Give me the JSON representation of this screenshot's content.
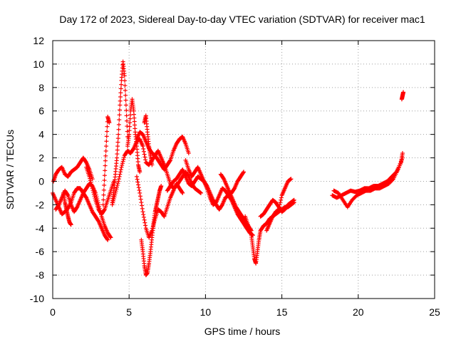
{
  "chart_data": {
    "type": "scatter",
    "title": "Day 172 of 2023, Sidereal Day-to-day VTEC variation (SDTVAR) for receiver mac1",
    "xlabel": "GPS time / hours",
    "ylabel": "SDTVAR / TECUs",
    "xlim": [
      0,
      25
    ],
    "ylim": [
      -10,
      12
    ],
    "xticks": [
      0,
      5,
      10,
      15,
      20,
      25
    ],
    "yticks": [
      -10,
      -8,
      -6,
      -4,
      -2,
      0,
      2,
      4,
      6,
      8,
      10,
      12
    ],
    "grid": true,
    "marker": "+",
    "series": [
      {
        "name": "SDTVAR",
        "color": "#ff0000",
        "segments": [
          {
            "x": [
              0.0,
              0.2,
              0.4,
              0.6,
              0.8,
              1.0,
              1.2,
              1.4,
              1.6,
              1.8,
              2.0,
              2.2,
              2.4,
              2.6,
              2.8,
              3.0,
              3.2,
              3.4,
              3.6
            ],
            "y": [
              -1.0,
              -1.6,
              -2.2,
              -2.8,
              -2.6,
              -2.3,
              -1.8,
              -1.0,
              -0.6,
              -0.6,
              -1.0,
              -1.4,
              -2.0,
              -2.6,
              -3.0,
              -3.4,
              -4.0,
              -4.6,
              -5.0
            ]
          },
          {
            "x": [
              0.05,
              0.2,
              0.4,
              0.6,
              0.8,
              1.0,
              1.2,
              1.4,
              1.6,
              1.8,
              2.0,
              2.2,
              2.4,
              2.6
            ],
            "y": [
              0.0,
              0.6,
              1.0,
              1.2,
              0.6,
              0.4,
              0.8,
              1.0,
              1.2,
              1.6,
              2.0,
              1.6,
              1.0,
              0.2
            ]
          },
          {
            "x": [
              0.2,
              0.4,
              0.6,
              0.8,
              1.0,
              1.2,
              1.4,
              1.6,
              1.8,
              2.0,
              2.2,
              2.4,
              2.6,
              2.8,
              3.0,
              3.2,
              3.4,
              3.6,
              3.8
            ],
            "y": [
              -2.4,
              -2.0,
              -1.4,
              -0.8,
              -1.2,
              -2.0,
              -2.6,
              -2.2,
              -1.6,
              -1.0,
              -0.6,
              -0.2,
              -0.4,
              -1.0,
              -2.0,
              -3.0,
              -3.8,
              -4.4,
              -4.8
            ]
          },
          {
            "x": [
              0.7,
              0.8,
              0.9,
              1.0,
              1.1,
              1.2
            ],
            "y": [
              -1.0,
              -1.8,
              -2.4,
              -3.0,
              -3.5,
              -3.7
            ]
          },
          {
            "x": [
              2.2,
              2.4,
              2.6,
              2.8,
              3.0,
              3.2,
              3.4,
              3.6,
              3.8,
              4.0
            ],
            "y": [
              1.2,
              0.4,
              -0.6,
              -1.6,
              -2.4,
              -2.8,
              -2.4,
              -1.6,
              -0.8,
              0.0
            ]
          },
          {
            "x": [
              3.3,
              3.4,
              3.5,
              3.6,
              3.7
            ],
            "y": [
              -2.0,
              0.5,
              3.0,
              5.5,
              5.0
            ]
          },
          {
            "x": [
              3.9,
              4.0,
              4.1,
              4.2,
              4.3,
              4.4,
              4.5,
              4.6,
              4.7,
              4.8,
              4.9
            ],
            "y": [
              -1.8,
              -0.8,
              0.6,
              2.0,
              4.0,
              6.5,
              8.6,
              10.2,
              9.0,
              6.5,
              3.8
            ]
          },
          {
            "x": [
              4.9,
              5.0,
              5.1,
              5.2,
              5.3,
              5.4,
              5.5,
              5.6,
              5.7
            ],
            "y": [
              3.0,
              4.0,
              6.0,
              7.0,
              6.0,
              4.2,
              3.0,
              1.4,
              0.8
            ]
          },
          {
            "x": [
              3.9,
              4.1,
              4.3,
              4.5,
              4.7,
              4.9,
              5.1,
              5.3,
              5.5,
              5.7,
              5.9,
              6.1,
              6.3,
              6.5,
              6.7,
              6.9,
              7.1,
              7.3,
              7.5,
              7.7,
              7.9,
              8.1,
              8.3,
              8.5,
              8.7,
              8.9,
              9.1,
              9.3,
              9.5,
              9.7
            ],
            "y": [
              -2.0,
              -1.0,
              0.0,
              1.2,
              2.2,
              2.6,
              2.4,
              2.8,
              3.4,
              3.6,
              3.0,
              1.6,
              1.4,
              1.8,
              2.2,
              2.6,
              2.0,
              1.4,
              0.6,
              -0.2,
              -0.6,
              -0.4,
              0.0,
              0.4,
              0.8,
              0.4,
              -0.2,
              -0.6,
              -0.8,
              -1.0
            ]
          },
          {
            "x": [
              5.5,
              5.7,
              5.9,
              6.1,
              6.3,
              6.5,
              6.7,
              6.9,
              7.1,
              7.3,
              7.5,
              7.7,
              7.9,
              8.1,
              8.3,
              8.5,
              8.7,
              8.9
            ],
            "y": [
              3.6,
              4.2,
              4.0,
              3.4,
              2.8,
              2.4,
              2.2,
              1.8,
              1.4,
              1.0,
              1.4,
              1.8,
              2.6,
              3.2,
              3.6,
              3.8,
              3.2,
              2.4
            ]
          },
          {
            "x": [
              6.0,
              6.1,
              6.2,
              6.3,
              6.4,
              6.5
            ],
            "y": [
              5.0,
              5.6,
              4.2,
              3.0,
              2.2,
              1.4
            ]
          },
          {
            "x": [
              5.8,
              5.9,
              6.0,
              6.1,
              6.2,
              6.3,
              6.4,
              6.5,
              6.6,
              6.7,
              6.8,
              6.9,
              7.0,
              7.1
            ],
            "y": [
              -5.0,
              -6.0,
              -7.2,
              -8.0,
              -7.8,
              -7.0,
              -6.0,
              -4.8,
              -3.6,
              -2.6,
              -2.0,
              -1.4,
              -0.8,
              -0.4
            ]
          },
          {
            "x": [
              5.5,
              5.7,
              5.9,
              6.1,
              6.3,
              6.5,
              6.7,
              6.9,
              7.1,
              7.3,
              7.5,
              7.7,
              7.9,
              8.1,
              8.3,
              8.5
            ],
            "y": [
              0.4,
              -1.0,
              -2.6,
              -4.0,
              -4.8,
              -4.2,
              -3.2,
              -2.4,
              -2.6,
              -3.0,
              -2.2,
              -1.4,
              -0.8,
              -0.2,
              -0.6,
              -1.0
            ]
          },
          {
            "x": [
              7.5,
              7.7,
              7.9,
              8.1,
              8.3,
              8.5,
              8.7,
              8.9,
              9.1,
              9.3,
              9.5,
              9.7,
              9.9,
              10.1,
              10.3,
              10.5,
              10.7,
              10.9,
              11.1,
              11.3,
              11.5,
              11.7,
              11.9,
              12.1,
              12.3,
              12.5,
              12.7,
              12.9,
              13.1
            ],
            "y": [
              -0.8,
              -0.4,
              0.0,
              0.2,
              0.6,
              1.0,
              0.4,
              -0.2,
              -0.4,
              0.0,
              0.4,
              0.2,
              0.0,
              -0.4,
              -1.0,
              -1.6,
              -2.0,
              -2.4,
              -2.0,
              -1.4,
              -1.2,
              -1.6,
              -2.2,
              -2.8,
              -3.2,
              -3.6,
              -4.0,
              -4.4,
              -4.6
            ]
          },
          {
            "x": [
              8.7,
              8.9,
              9.1,
              9.3,
              9.5,
              9.7,
              9.9,
              10.1,
              10.3,
              10.5,
              10.7,
              10.9,
              11.1,
              11.3,
              11.5,
              11.7,
              11.9,
              12.1,
              12.3,
              12.5
            ],
            "y": [
              1.8,
              1.0,
              0.4,
              0.8,
              1.2,
              0.6,
              0.0,
              -0.6,
              -1.4,
              -2.0,
              -1.8,
              -1.2,
              -0.6,
              -0.8,
              -1.2,
              -1.0,
              -0.6,
              0.0,
              0.4,
              0.8
            ]
          },
          {
            "x": [
              11.0,
              11.2,
              11.4,
              11.6,
              11.8,
              12.0,
              12.2,
              12.4,
              12.6,
              12.8,
              13.0
            ],
            "y": [
              0.6,
              0.2,
              -0.4,
              -1.0,
              -1.6,
              -2.2,
              -2.6,
              -3.0,
              -3.4,
              -3.8,
              -4.2
            ]
          },
          {
            "x": [
              12.6,
              12.8,
              13.0,
              13.1,
              13.2,
              13.3,
              13.4,
              13.5,
              13.6,
              13.8,
              14.0,
              14.2,
              14.4,
              14.6,
              14.8,
              15.0,
              15.2,
              15.4,
              15.6,
              15.8
            ],
            "y": [
              -3.0,
              -3.8,
              -4.6,
              -5.6,
              -6.6,
              -7.0,
              -6.0,
              -5.0,
              -4.2,
              -3.8,
              -3.6,
              -3.2,
              -3.0,
              -2.8,
              -2.6,
              -2.4,
              -2.2,
              -2.2,
              -2.0,
              -1.8
            ]
          },
          {
            "x": [
              13.6,
              13.8,
              14.0,
              14.2,
              14.4,
              14.6,
              14.8,
              15.0,
              15.2,
              15.4,
              15.6,
              15.8
            ],
            "y": [
              -3.0,
              -2.8,
              -2.4,
              -2.0,
              -1.6,
              -1.8,
              -2.2,
              -2.6,
              -2.4,
              -2.0,
              -1.8,
              -1.6
            ]
          },
          {
            "x": [
              14.0,
              14.2,
              14.4,
              14.6,
              14.8,
              15.0,
              15.2,
              15.4,
              15.6
            ],
            "y": [
              -4.2,
              -3.6,
              -3.0,
              -2.6,
              -2.4,
              -1.2,
              -0.6,
              0.0,
              0.2
            ]
          },
          {
            "x": [
              18.3,
              18.6,
              18.9,
              19.2,
              19.5,
              19.8,
              20.1,
              20.4,
              20.7,
              21.0,
              21.3,
              21.6,
              21.9,
              22.2,
              22.5,
              22.8,
              22.9
            ],
            "y": [
              -1.2,
              -1.4,
              -1.2,
              -1.0,
              -0.8,
              -0.9,
              -0.8,
              -0.6,
              -0.6,
              -0.4,
              -0.4,
              -0.2,
              0.0,
              0.4,
              0.8,
              1.6,
              2.4
            ]
          },
          {
            "x": [
              18.4,
              18.7,
              19.0,
              19.3,
              19.6,
              19.9,
              20.2,
              20.5,
              20.8,
              21.1,
              21.4,
              21.7,
              22.0,
              22.3,
              22.6,
              22.9
            ],
            "y": [
              -0.8,
              -1.0,
              -1.6,
              -2.2,
              -1.6,
              -1.2,
              -1.0,
              -0.8,
              -0.8,
              -0.6,
              -0.6,
              -0.4,
              -0.2,
              0.2,
              1.0,
              2.0
            ]
          },
          {
            "x": [
              22.85,
              22.9,
              22.95
            ],
            "y": [
              7.0,
              7.3,
              7.6
            ]
          }
        ]
      }
    ]
  }
}
